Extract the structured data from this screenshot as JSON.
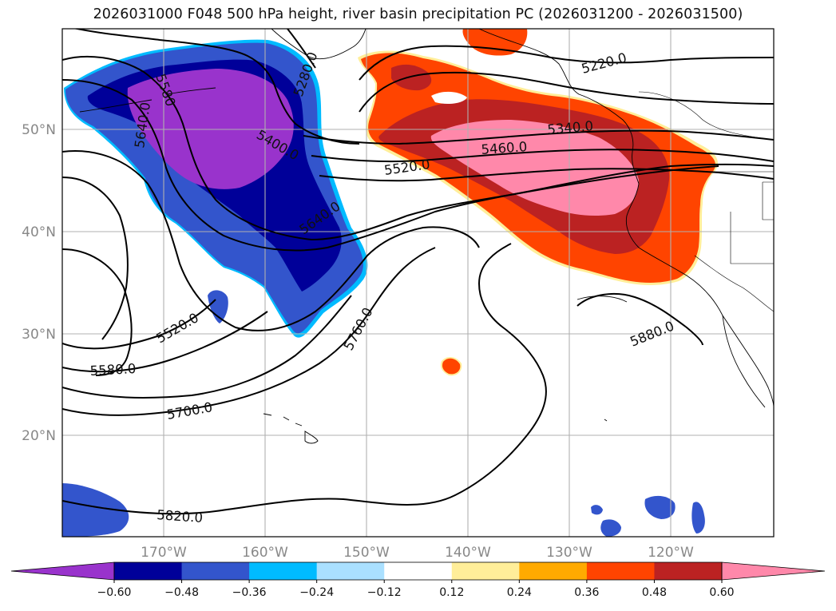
{
  "title": "2026031000 F048 500 hPa height, river basin precipitation PC (2026031200 - 2026031500)",
  "map": {
    "lat_labels": [
      "50°N",
      "40°N",
      "30°N",
      "20°N"
    ],
    "lon_labels": [
      "170°W",
      "160°W",
      "150°W",
      "140°W",
      "130°W",
      "120°W"
    ],
    "contour_labels": [
      "5580",
      "5280.0",
      "5220.0",
      "5340.0",
      "5640.0",
      "5400.0",
      "5460.0",
      "5520.0",
      "5640.0",
      "5520.0",
      "5760.0",
      "5580.0",
      "5700.0",
      "5880.0",
      "5820.0"
    ]
  },
  "colorbar": {
    "ticks": [
      "−0.60",
      "−0.48",
      "−0.36",
      "−0.24",
      "−0.12",
      "0.12",
      "0.24",
      "0.36",
      "0.48",
      "0.60"
    ],
    "colors": [
      "#9933cc",
      "#000099",
      "#3355cc",
      "#00bbff",
      "#aae0ff",
      "#ffffff",
      "#ffee99",
      "#ffaa00",
      "#ff4400",
      "#bb2222",
      "#ff88aa",
      "#ff88aa"
    ]
  }
}
